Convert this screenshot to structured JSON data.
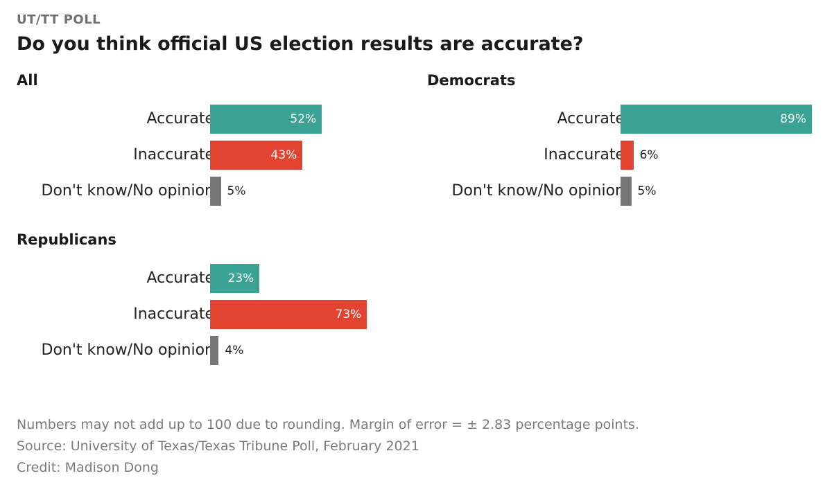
{
  "kicker": "UT/TT POLL",
  "title": "Do you think official US election results are accurate?",
  "colors": {
    "Accurate": "#3aa394",
    "Inaccurate": "#e34431",
    "Don't know/No opinion": "#777777"
  },
  "chart_data": [
    {
      "type": "bar",
      "orientation": "horizontal",
      "title": "All",
      "categories": [
        "Accurate",
        "Inaccurate",
        "Don't know/No opinion"
      ],
      "values": [
        52,
        43,
        5
      ],
      "labels": [
        "52%",
        "43%",
        "5%"
      ],
      "xlim": [
        0,
        100
      ]
    },
    {
      "type": "bar",
      "orientation": "horizontal",
      "title": "Democrats",
      "categories": [
        "Accurate",
        "Inaccurate",
        "Don't know/No opinion"
      ],
      "values": [
        89,
        6,
        5
      ],
      "labels": [
        "89%",
        "6%",
        "5%"
      ],
      "xlim": [
        0,
        100
      ]
    },
    {
      "type": "bar",
      "orientation": "horizontal",
      "title": "Republicans",
      "categories": [
        "Accurate",
        "Inaccurate",
        "Don't know/No opinion"
      ],
      "values": [
        23,
        73,
        4
      ],
      "labels": [
        "23%",
        "73%",
        "4%"
      ],
      "xlim": [
        0,
        100
      ]
    }
  ],
  "notes": [
    "Numbers may not add up to 100 due to rounding. Margin of error = ± 2.83 percentage points.",
    "Source: University of Texas/Texas Tribune Poll, February 2021",
    "Credit: Madison Dong"
  ]
}
